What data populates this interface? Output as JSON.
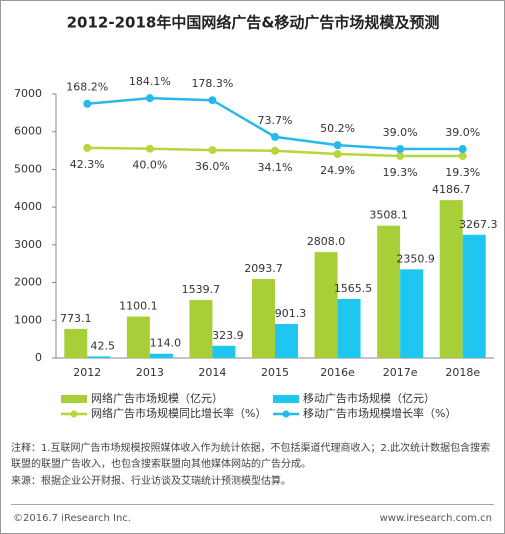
{
  "chart_data": {
    "type": "bar",
    "title": "2012-2018年中国网络广告&移动广告市场规模及预测",
    "categories": [
      "2012",
      "2013",
      "2014",
      "2015",
      "2016e",
      "2017e",
      "2018e"
    ],
    "ylim": [
      0,
      7000
    ],
    "yticks": [
      0,
      1000,
      2000,
      3000,
      4000,
      5000,
      6000,
      7000
    ],
    "y2lim": [
      -557,
      196
    ],
    "grid": false,
    "series": [
      {
        "name": "网络广告市场规模（亿元）",
        "type": "bar",
        "color": "#a8cf38",
        "values": [
          773.1,
          1100.1,
          1539.7,
          2093.7,
          2808.0,
          3508.1,
          4186.7
        ],
        "value_labels": [
          "773.1",
          "1100.1",
          "1539.7",
          "2093.7",
          "2808.0",
          "3508.1",
          "4186.7"
        ]
      },
      {
        "name": "移动广告市场规模（亿元）",
        "type": "bar",
        "color": "#1fc6ef",
        "values": [
          42.5,
          114.0,
          323.9,
          901.3,
          1565.5,
          2350.9,
          3267.3
        ],
        "value_labels": [
          "42.5",
          "114.0",
          "323.9",
          "901.3",
          "1565.5",
          "2350.9",
          "3267.3"
        ]
      },
      {
        "name": "网络广告市场规模同比增长率（%）",
        "type": "line",
        "axis": "y2",
        "color": "#b7d63a",
        "values": [
          42.3,
          40.0,
          36.0,
          34.1,
          24.9,
          19.3,
          19.3
        ],
        "value_labels": [
          "42.3%",
          "40.0%",
          "36.0%",
          "34.1%",
          "24.9%",
          "19.3%",
          "19.3%"
        ]
      },
      {
        "name": "移动广告市场规模增长率（%）",
        "type": "line",
        "axis": "y2",
        "color": "#27b9e9",
        "values": [
          168.2,
          184.1,
          178.3,
          73.7,
          50.2,
          39.0,
          39.0
        ],
        "value_labels": [
          "168.2%",
          "184.1%",
          "178.3%",
          "73.7%",
          "50.2%",
          "39.0%",
          "39.0%"
        ]
      }
    ]
  },
  "notes": {
    "note": "注释：1.互联网广告市场规模按照媒体收入作为统计依据，不包括渠道代理商收入；2.此次统计数据包含搜索联盟的联盟广告收入，也包含搜索联盟向其他媒体网站的广告分成。",
    "source": "来源：根据企业公开财报、行业访谈及艾瑞统计预测模型估算。"
  },
  "footer": {
    "copyright": "©2016.7 iResearch Inc.",
    "website": "www.iresearch.com.cn"
  }
}
